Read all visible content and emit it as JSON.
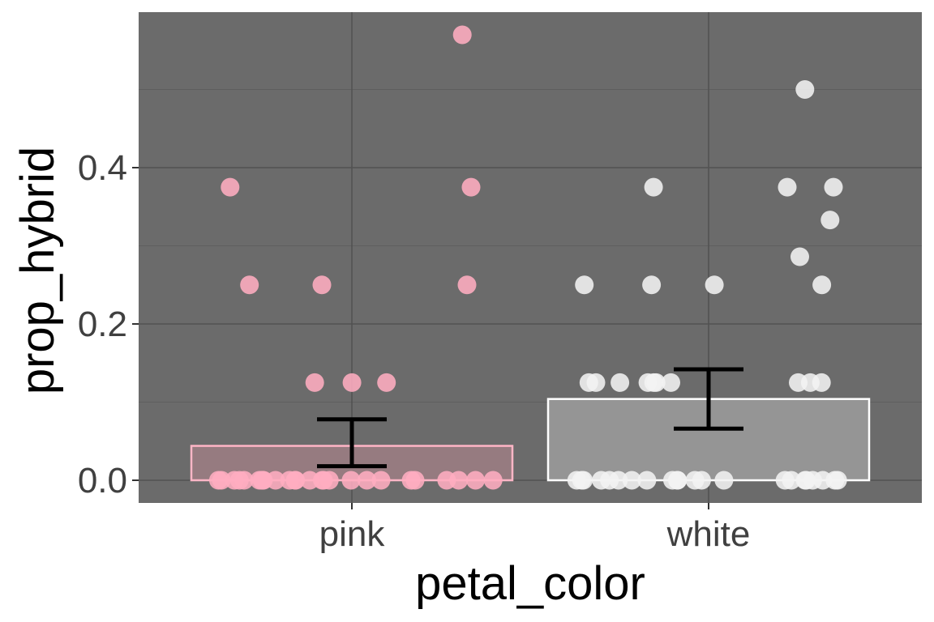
{
  "chart_data": {
    "type": "bar",
    "xlabel": "petal_color",
    "ylabel": "prop_hybrid",
    "categories": [
      "pink",
      "white"
    ],
    "y_ticks": [
      "0.0",
      "0.2",
      "0.4"
    ],
    "y_tick_values": [
      0.0,
      0.2,
      0.4
    ],
    "ylim": [
      -0.028,
      0.6
    ],
    "grid": true,
    "panel_background": "#6b6b6b",
    "bars": [
      {
        "category": "pink",
        "mean": 0.044,
        "error_low": 0.018,
        "error_high": 0.078,
        "fill": "#967b80",
        "outline": "#ffb6c6"
      },
      {
        "category": "white",
        "mean": 0.104,
        "error_low": 0.066,
        "error_high": 0.142,
        "fill": "#959595",
        "outline": "#ffffff"
      }
    ],
    "points": [
      {
        "category": "pink",
        "color": "#ffadc0",
        "values": [
          0.57,
          0.375,
          0.375,
          0.25,
          0.25,
          0.25,
          0.125,
          0.125,
          0.125,
          0,
          0,
          0,
          0,
          0,
          0,
          0,
          0,
          0,
          0,
          0,
          0,
          0,
          0,
          0,
          0,
          0,
          0,
          0,
          0,
          0,
          0,
          0,
          0,
          0,
          0
        ]
      },
      {
        "category": "white",
        "color": "#f2f2f2",
        "values": [
          0.5,
          0.375,
          0.375,
          0.375,
          0.333,
          0.286,
          0.25,
          0.25,
          0.25,
          0.25,
          0.125,
          0.125,
          0.125,
          0.125,
          0.125,
          0.125,
          0.125,
          0.125,
          0.125,
          0.125,
          0,
          0,
          0,
          0,
          0,
          0,
          0,
          0,
          0,
          0,
          0,
          0,
          0,
          0,
          0,
          0,
          0,
          0,
          0,
          0,
          0,
          0
        ]
      }
    ]
  }
}
